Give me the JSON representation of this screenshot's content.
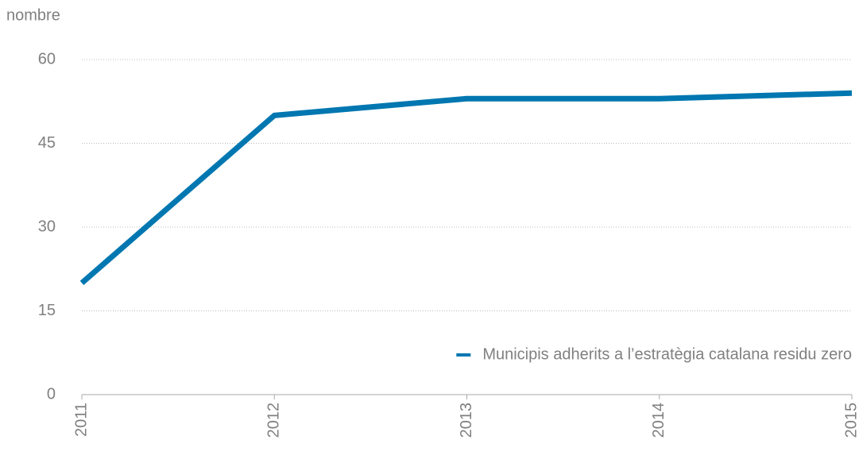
{
  "chart_data": {
    "type": "line",
    "ylabel": "nombre",
    "categories": [
      "2011",
      "2012",
      "2013",
      "2014",
      "2015"
    ],
    "series": [
      {
        "name": "Municipis adherits a l’estratègia catalana residu zero",
        "color": "#0077b0",
        "values": [
          20,
          50,
          53,
          53,
          54
        ]
      }
    ],
    "ylim": [
      0,
      60
    ],
    "yticks": [
      0,
      15,
      30,
      45,
      60
    ],
    "grid": true,
    "legend": "lower right"
  }
}
